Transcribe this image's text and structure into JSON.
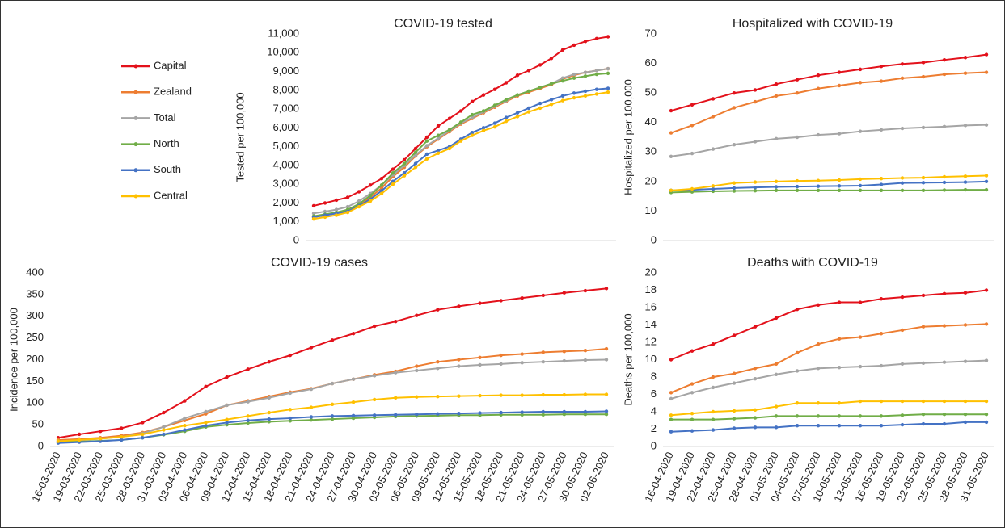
{
  "chart_data": [
    {
      "type": "line",
      "title": "COVID-19 tested",
      "y_label": "Tested per 100,000",
      "legend": "left",
      "categories": [
        null,
        null,
        null,
        null,
        null,
        null,
        null,
        null,
        null,
        null,
        null,
        null,
        null,
        null,
        null,
        null,
        null,
        null,
        null,
        null,
        null,
        null,
        null,
        null,
        null,
        null,
        null
      ],
      "ylim": [
        0,
        11000
      ],
      "yticks": [
        0,
        {
          "value": 1000,
          "label": "1,000"
        },
        {
          "value": 2000,
          "label": "2,000"
        },
        {
          "value": 3000,
          "label": "3,000"
        },
        {
          "value": 4000,
          "label": "4,000"
        },
        {
          "value": 5000,
          "label": "5,000"
        },
        {
          "value": 6000,
          "label": "6,000"
        },
        {
          "value": 7000,
          "label": "7,000"
        },
        {
          "value": 8000,
          "label": "8,000"
        },
        {
          "value": 9000,
          "label": "9,000"
        },
        {
          "value": 10000,
          "label": "10,000"
        },
        {
          "value": 11000,
          "label": "11,000"
        }
      ],
      "series": [
        {
          "name": "Capital",
          "color": "#e3111b",
          "values": [
            1850,
            2000,
            2150,
            2300,
            2600,
            2950,
            3300,
            3800,
            4300,
            4900,
            5500,
            6100,
            6500,
            6900,
            7400,
            7750,
            8050,
            8400,
            8800,
            9050,
            9350,
            9700,
            10150,
            10400,
            10600,
            10750,
            10850
          ]
        },
        {
          "name": "Zealand",
          "color": "#ed7d31",
          "values": [
            1250,
            1350,
            1450,
            1600,
            1900,
            2300,
            2800,
            3400,
            3900,
            4500,
            5000,
            5400,
            5800,
            6200,
            6500,
            6800,
            7100,
            7400,
            7700,
            7900,
            8100,
            8300,
            8600,
            8800,
            8950,
            9050,
            9150
          ]
        },
        {
          "name": "Total",
          "color": "#a5a5a5",
          "values": [
            1450,
            1550,
            1650,
            1800,
            2100,
            2500,
            2950,
            3500,
            4000,
            4550,
            5050,
            5450,
            5850,
            6250,
            6550,
            6850,
            7150,
            7450,
            7750,
            7950,
            8150,
            8350,
            8650,
            8850,
            8950,
            9050,
            9150
          ]
        },
        {
          "name": "North",
          "color": "#70ad47",
          "values": [
            1300,
            1400,
            1500,
            1650,
            1950,
            2400,
            2950,
            3600,
            4100,
            4700,
            5300,
            5600,
            5900,
            6300,
            6700,
            6900,
            7200,
            7500,
            7750,
            7950,
            8150,
            8350,
            8500,
            8650,
            8750,
            8850,
            8900
          ]
        },
        {
          "name": "South",
          "color": "#4472c4",
          "values": [
            1250,
            1350,
            1450,
            1550,
            1850,
            2200,
            2650,
            3150,
            3600,
            4100,
            4600,
            4800,
            5000,
            5400,
            5750,
            6000,
            6250,
            6550,
            6800,
            7050,
            7300,
            7500,
            7700,
            7850,
            7950,
            8050,
            8100
          ]
        },
        {
          "name": "Central",
          "color": "#ffc000",
          "values": [
            1150,
            1250,
            1350,
            1500,
            1800,
            2100,
            2500,
            3000,
            3450,
            3900,
            4350,
            4650,
            4900,
            5300,
            5600,
            5850,
            6050,
            6350,
            6600,
            6850,
            7050,
            7250,
            7450,
            7600,
            7700,
            7800,
            7900
          ]
        }
      ]
    },
    {
      "type": "line",
      "title": "Hospitalized with COVID-19",
      "y_label": "Hospitalized per 100,000",
      "categories": [
        null,
        null,
        null,
        null,
        null,
        null,
        null,
        null,
        null,
        null,
        null,
        null,
        null,
        null,
        null,
        null
      ],
      "ylim": [
        0,
        70
      ],
      "yticks": [
        0,
        10,
        20,
        30,
        40,
        50,
        60,
        70
      ],
      "series": [
        {
          "values": [
            44,
            46,
            48,
            50,
            51,
            53,
            54.5,
            56,
            57,
            58,
            59,
            59.8,
            60.3,
            61.2,
            62,
            63
          ]
        },
        {
          "values": [
            36.5,
            39,
            42,
            45,
            47,
            49,
            50,
            51.5,
            52.5,
            53.5,
            54,
            55,
            55.5,
            56.3,
            56.7,
            57
          ]
        },
        {
          "values": [
            28.5,
            29.5,
            31,
            32.5,
            33.5,
            34.5,
            35,
            35.8,
            36.2,
            37,
            37.5,
            38,
            38.3,
            38.6,
            39,
            39.2
          ]
        },
        {
          "values": [
            16.3,
            16.5,
            16.7,
            16.8,
            16.9,
            17,
            17,
            17,
            17,
            17,
            17,
            17,
            17,
            17.1,
            17.2,
            17.2
          ]
        },
        {
          "values": [
            17,
            17.2,
            17.5,
            17.8,
            18,
            18.2,
            18.3,
            18.4,
            18.5,
            18.6,
            19,
            19.5,
            19.6,
            19.7,
            19.8,
            20
          ]
        },
        {
          "values": [
            17,
            17.5,
            18.5,
            19.5,
            19.8,
            20,
            20.2,
            20.3,
            20.5,
            20.8,
            21,
            21.2,
            21.3,
            21.6,
            21.8,
            22
          ]
        }
      ]
    },
    {
      "type": "line",
      "title": "COVID-19 cases",
      "y_label": "Incidence per 100,000",
      "categories": [
        "16-03-2020",
        "19-03-2020",
        "22-03-2020",
        "25-03-2020",
        "28-03-2020",
        "31-03-2020",
        "03-04-2020",
        "06-04-2020",
        "09-04-2020",
        "12-04-2020",
        "15-04-2020",
        "18-04-2020",
        "21-04-2020",
        "24-04-2020",
        "27-04-2020",
        "30-04-2020",
        "03-05-2020",
        "06-05-2020",
        "09-05-2020",
        "12-05-2020",
        "15-05-2020",
        "18-05-2020",
        "21-05-2020",
        "24-05-2020",
        "27-05-2020",
        "30-05-2020",
        "02-06-2020"
      ],
      "ylim": [
        0,
        400
      ],
      "yticks": [
        0,
        50,
        100,
        150,
        200,
        250,
        300,
        350,
        400
      ],
      "series": [
        {
          "values": [
            20,
            28,
            35,
            42,
            55,
            78,
            105,
            138,
            160,
            178,
            195,
            210,
            228,
            245,
            260,
            277,
            288,
            302,
            315,
            323,
            330,
            336,
            342,
            348,
            354,
            359,
            364
          ]
        },
        {
          "values": [
            15,
            17,
            20,
            25,
            32,
            45,
            60,
            75,
            95,
            105,
            115,
            125,
            133,
            145,
            155,
            165,
            173,
            185,
            195,
            200,
            205,
            210,
            213,
            217,
            219,
            221,
            225
          ]
        },
        {
          "values": [
            12,
            14,
            18,
            22,
            30,
            45,
            65,
            80,
            95,
            103,
            112,
            123,
            132,
            145,
            155,
            163,
            170,
            175,
            180,
            185,
            188,
            190,
            193,
            195,
            197,
            199,
            200
          ]
        },
        {
          "values": [
            10,
            11,
            13,
            15,
            20,
            27,
            35,
            45,
            50,
            54,
            57,
            59,
            61,
            63,
            65,
            67,
            69,
            70,
            71,
            72,
            72,
            73,
            73,
            73,
            74,
            74,
            74
          ]
        },
        {
          "values": [
            8,
            10,
            12,
            15,
            20,
            28,
            38,
            48,
            55,
            60,
            63,
            65,
            68,
            70,
            71,
            72,
            73,
            74,
            75,
            76,
            77,
            78,
            79,
            80,
            80,
            80,
            81
          ]
        },
        {
          "values": [
            12,
            15,
            18,
            22,
            28,
            38,
            48,
            55,
            62,
            70,
            78,
            85,
            90,
            97,
            102,
            108,
            112,
            114,
            115,
            116,
            117,
            118,
            118,
            119,
            119,
            120,
            120
          ]
        }
      ]
    },
    {
      "type": "line",
      "title": "Deaths with COVID-19",
      "y_label": "Deaths per 100,000",
      "categories": [
        "16-04-2020",
        "19-04-2020",
        "22-04-2020",
        "25-04-2020",
        "28-04-2020",
        "01-05-2020",
        "04-05-2020",
        "07-05-2020",
        "10-05-2020",
        "13-05-2020",
        "16-05-2020",
        "19-05-2020",
        "22-05-2020",
        "25-05-2020",
        "28-05-2020",
        "31-05-2020"
      ],
      "ylim": [
        0,
        20
      ],
      "yticks": [
        0,
        2,
        4,
        6,
        8,
        10,
        12,
        14,
        16,
        18,
        20
      ],
      "series": [
        {
          "values": [
            10,
            11,
            11.8,
            12.8,
            13.8,
            14.8,
            15.8,
            16.3,
            16.6,
            16.6,
            17,
            17.2,
            17.4,
            17.6,
            17.7,
            18
          ]
        },
        {
          "values": [
            6.2,
            7.2,
            8,
            8.4,
            9,
            9.5,
            10.8,
            11.8,
            12.4,
            12.6,
            13,
            13.4,
            13.8,
            13.9,
            14,
            14.1
          ]
        },
        {
          "values": [
            5.5,
            6.2,
            6.8,
            7.3,
            7.8,
            8.3,
            8.7,
            9,
            9.1,
            9.2,
            9.3,
            9.5,
            9.6,
            9.7,
            9.8,
            9.9
          ]
        },
        {
          "values": [
            3.1,
            3.1,
            3.1,
            3.2,
            3.3,
            3.5,
            3.5,
            3.5,
            3.5,
            3.5,
            3.5,
            3.6,
            3.7,
            3.7,
            3.7,
            3.7
          ]
        },
        {
          "values": [
            1.7,
            1.8,
            1.9,
            2.1,
            2.2,
            2.2,
            2.4,
            2.4,
            2.4,
            2.4,
            2.4,
            2.5,
            2.6,
            2.6,
            2.8,
            2.8
          ]
        },
        {
          "values": [
            3.6,
            3.8,
            4,
            4.1,
            4.2,
            4.6,
            5,
            5,
            5,
            5.2,
            5.2,
            5.2,
            5.2,
            5.2,
            5.2,
            5.2
          ]
        }
      ]
    }
  ]
}
